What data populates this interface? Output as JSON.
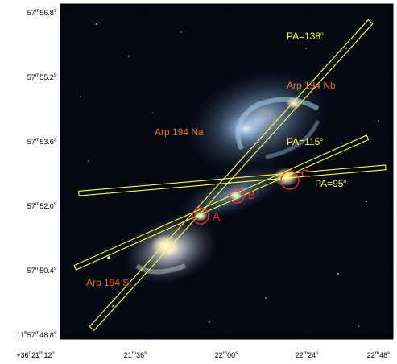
{
  "y_ticks": [
    {
      "deg": "",
      "min": "57",
      "sec": "56.8",
      "prefix": ""
    },
    {
      "deg": "",
      "min": "57",
      "sec": "55.2",
      "prefix": ""
    },
    {
      "deg": "",
      "min": "57",
      "sec": "53.6",
      "prefix": ""
    },
    {
      "deg": "",
      "min": "57",
      "sec": "52.0",
      "prefix": ""
    },
    {
      "deg": "",
      "min": "57",
      "sec": "50.4",
      "prefix": ""
    },
    {
      "deg": "11",
      "min": "57",
      "sec": "48.8",
      "prefix": ""
    }
  ],
  "x_ticks": [
    {
      "prefix": "+36",
      "deg": "",
      "min": "21",
      "sec": "12",
      "first": true
    },
    {
      "prefix": "",
      "deg": "",
      "min": "21",
      "sec": "36"
    },
    {
      "prefix": "",
      "deg": "",
      "min": "22",
      "sec": "00"
    },
    {
      "prefix": "",
      "deg": "",
      "min": "22",
      "sec": "24"
    },
    {
      "prefix": "",
      "deg": "",
      "min": "22",
      "sec": "48"
    }
  ],
  "slits": [
    {
      "label": "PA=138",
      "degree_symbol": "o",
      "color": "#ffff33"
    },
    {
      "label": "PA=115",
      "degree_symbol": "o",
      "color": "#ffff33"
    },
    {
      "label": "PA=95",
      "degree_symbol": "o",
      "color": "#ffff33"
    }
  ],
  "galaxies": [
    {
      "label": "Arp 194 Nb"
    },
    {
      "label": "Arp 194 Na"
    },
    {
      "label": "Arp 194 S"
    }
  ],
  "knots": [
    {
      "label": "A",
      "color": "#ff2a2a"
    },
    {
      "label": "B",
      "color": "#ff2a2a"
    },
    {
      "label": "C",
      "color": "#ff2a2a"
    }
  ],
  "colors": {
    "sky": "#050711",
    "slit": "#ffff33",
    "knot": "#ff2a2a",
    "galaxy_label": "#e8741c"
  }
}
